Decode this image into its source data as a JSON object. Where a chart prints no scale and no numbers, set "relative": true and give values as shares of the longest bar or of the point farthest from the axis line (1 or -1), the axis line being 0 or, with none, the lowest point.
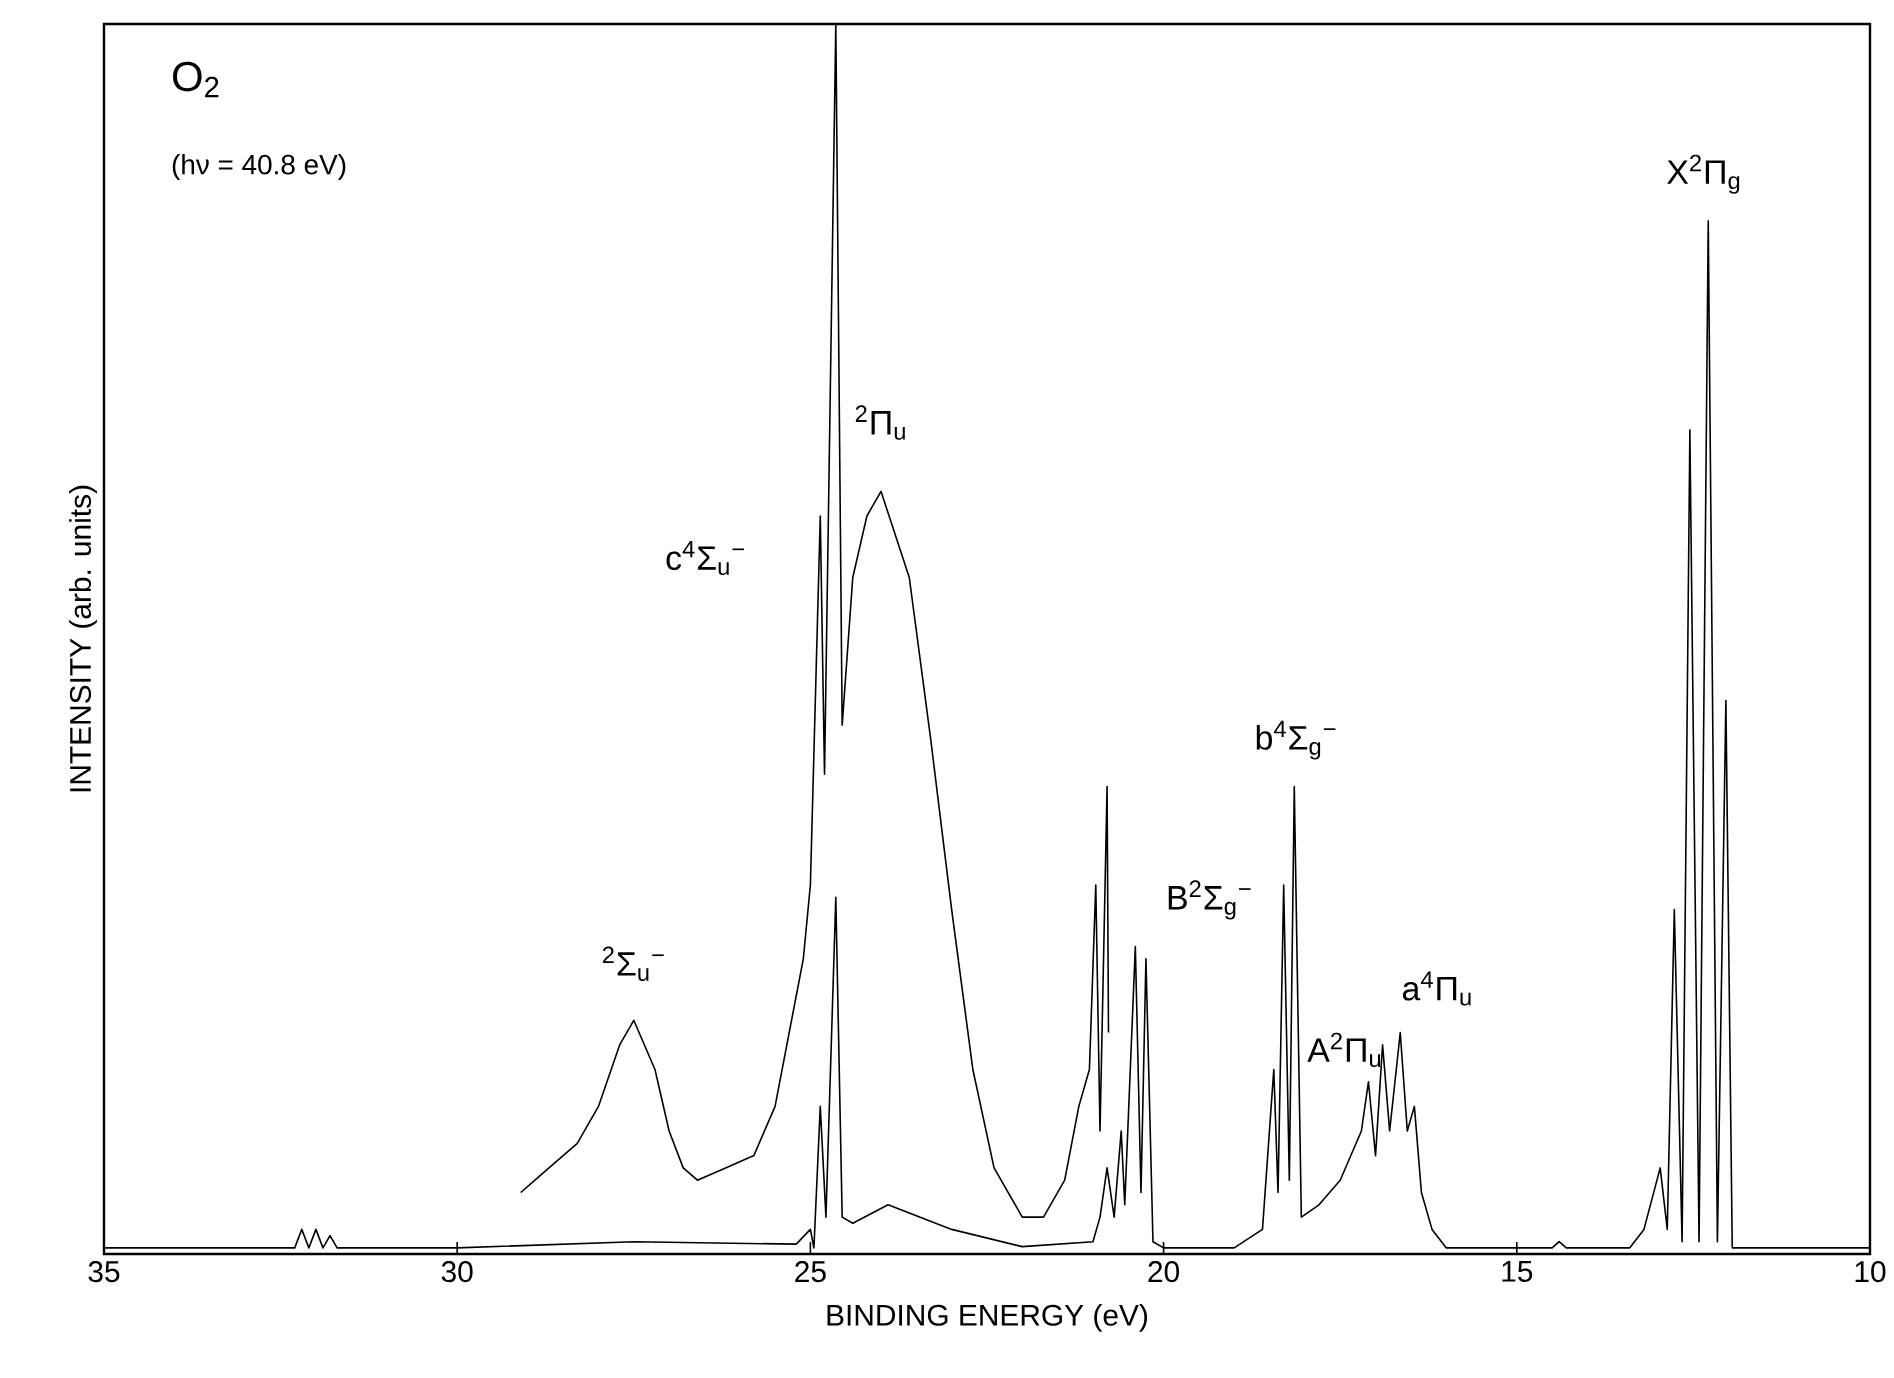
{
  "chart_data": {
    "type": "line",
    "title": "O$_{2}$",
    "subtitle": "(hν = 40.8 eV)",
    "xlabel": "BINDING ENERGY (eV)",
    "ylabel": "INTENSITY (arb. units)",
    "relative": true,
    "xlim": [
      35,
      10
    ],
    "xticks": [
      35,
      30,
      25,
      20,
      15,
      10
    ],
    "grid": false,
    "series": [
      {
        "color": "#000000",
        "x": [
          35,
          32.3,
          32.2,
          32.1,
          32.0,
          31.9,
          31.8,
          31.7,
          30,
          27.5,
          25.2,
          25.0,
          24.95,
          24.86,
          24.78,
          24.64,
          24.55,
          24.4,
          23.9,
          23.0,
          22.0,
          21.0,
          20.9,
          20.8,
          20.7,
          20.6,
          20.55,
          20.4,
          20.32,
          20.25,
          20.15,
          20.0,
          19.0,
          18.6,
          18.44,
          18.38,
          18.3,
          18.22,
          18.15,
          18.05,
          17.8,
          17.5,
          17.2,
          17.1,
          17.0,
          16.9,
          16.8,
          16.65,
          16.55,
          16.45,
          16.35,
          16.2,
          16.0,
          14.5,
          14.4,
          14.3,
          13.4,
          13.2,
          12.97,
          12.87,
          12.77,
          12.66,
          12.55,
          12.42,
          12.29,
          12.16,
          12.04,
          11.95,
          10
        ],
        "values": [
          0.005,
          0.005,
          0.02,
          0.005,
          0.02,
          0.005,
          0.015,
          0.005,
          0.005,
          0.01,
          0.008,
          0.02,
          0.005,
          0.12,
          0.03,
          0.29,
          0.03,
          0.025,
          0.04,
          0.02,
          0.006,
          0.01,
          0.03,
          0.07,
          0.03,
          0.1,
          0.04,
          0.25,
          0.05,
          0.24,
          0.01,
          0.005,
          0.005,
          0.02,
          0.15,
          0.05,
          0.3,
          0.06,
          0.38,
          0.03,
          0.04,
          0.06,
          0.1,
          0.14,
          0.08,
          0.17,
          0.1,
          0.18,
          0.1,
          0.12,
          0.05,
          0.02,
          0.005,
          0.005,
          0.01,
          0.005,
          0.005,
          0.02,
          0.07,
          0.02,
          0.28,
          0.01,
          0.67,
          0.01,
          0.84,
          0.01,
          0.45,
          0.005,
          0.005
        ]
      },
      {
        "color": "#000000",
        "x": [
          29.1,
          28.9,
          28.7,
          28.5,
          28.3,
          28.0,
          27.7,
          27.5,
          27.2,
          27.0,
          26.8,
          26.6,
          26.2,
          25.8,
          25.5,
          25.1,
          25.0,
          24.86,
          24.8,
          24.64,
          24.55,
          24.4,
          24.2,
          24.0,
          23.6,
          23.3,
          23.0,
          22.7,
          22.4,
          22.0,
          21.7,
          21.4,
          21.2,
          21.05,
          20.96,
          20.9,
          20.8,
          20.78
        ],
        "values": [
          0.05,
          0.06,
          0.07,
          0.08,
          0.09,
          0.12,
          0.17,
          0.19,
          0.15,
          0.1,
          0.07,
          0.06,
          0.07,
          0.08,
          0.12,
          0.24,
          0.3,
          0.6,
          0.39,
          1.0,
          0.43,
          0.55,
          0.6,
          0.62,
          0.55,
          0.42,
          0.28,
          0.15,
          0.07,
          0.03,
          0.03,
          0.06,
          0.12,
          0.15,
          0.3,
          0.1,
          0.38,
          0.18
        ]
      }
    ],
    "annotations": [
      "$^{2}$Σ$_{u}$$^{−}$",
      "c$^{4}$Σ$_{u}$$^{−}$",
      "$^{2}$Π$_{u}$",
      "B$^{2}$Σ$_{g}$$^{−}$",
      "b$^{4}$Σ$_{g}$$^{−}$",
      "A$^{2}$Π$_{u}$",
      "a$^{4}$Π$_{u}$",
      "X$^{2}$Π$_{g}$"
    ]
  }
}
